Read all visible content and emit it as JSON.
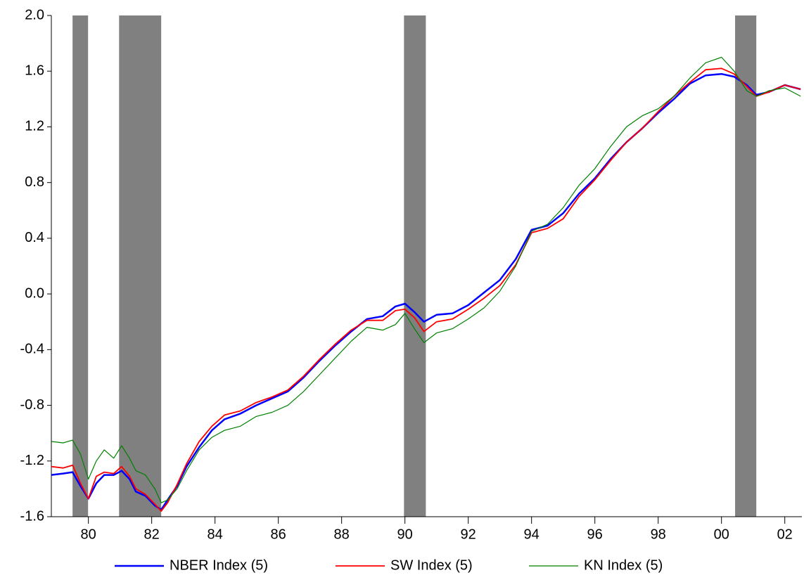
{
  "chart_data": {
    "type": "line",
    "x": [
      1979.33,
      1979.7,
      1980.0,
      1980.25,
      1980.5,
      1980.75,
      1981.0,
      1981.3,
      1981.55,
      1981.8,
      1982.0,
      1982.3,
      1982.6,
      1982.8,
      1983.0,
      1983.3,
      1983.6,
      1984.0,
      1984.4,
      1984.8,
      1985.3,
      1985.8,
      1986.3,
      1986.8,
      1987.3,
      1987.8,
      1988.3,
      1988.8,
      1989.3,
      1989.8,
      1990.2,
      1990.5,
      1990.8,
      1991.1,
      1991.5,
      1992.0,
      1992.5,
      1993.0,
      1993.5,
      1994.0,
      1994.5,
      1995.0,
      1995.5,
      1996.0,
      1996.5,
      1997.0,
      1997.5,
      1998.0,
      1998.5,
      1999.0,
      1999.5,
      2000.0,
      2000.5,
      2000.9,
      2001.3,
      2001.6,
      2002.0,
      2002.5,
      2003.0
    ],
    "series": [
      {
        "name": "NBER Index (5)",
        "color": "#0000ff",
        "width": 2.5,
        "values": [
          -1.3,
          -1.29,
          -1.28,
          -1.38,
          -1.47,
          -1.36,
          -1.3,
          -1.3,
          -1.27,
          -1.33,
          -1.42,
          -1.45,
          -1.52,
          -1.55,
          -1.48,
          -1.38,
          -1.24,
          -1.1,
          -0.98,
          -0.9,
          -0.86,
          -0.8,
          -0.75,
          -0.7,
          -0.6,
          -0.48,
          -0.37,
          -0.27,
          -0.18,
          -0.16,
          -0.09,
          -0.07,
          -0.13,
          -0.2,
          -0.15,
          -0.14,
          -0.08,
          0.01,
          0.1,
          0.25,
          0.46,
          0.49,
          0.58,
          0.72,
          0.83,
          0.97,
          1.09,
          1.19,
          1.3,
          1.4,
          1.51,
          1.57,
          1.58,
          1.56,
          1.5,
          1.43,
          1.45,
          1.5,
          1.47
        ]
      },
      {
        "name": "SW Index (5)",
        "color": "#ff0000",
        "width": 1.8,
        "values": [
          -1.24,
          -1.25,
          -1.23,
          -1.36,
          -1.47,
          -1.31,
          -1.28,
          -1.29,
          -1.24,
          -1.31,
          -1.4,
          -1.44,
          -1.51,
          -1.56,
          -1.5,
          -1.37,
          -1.22,
          -1.06,
          -0.95,
          -0.87,
          -0.84,
          -0.78,
          -0.74,
          -0.69,
          -0.59,
          -0.47,
          -0.36,
          -0.26,
          -0.19,
          -0.19,
          -0.12,
          -0.11,
          -0.17,
          -0.27,
          -0.2,
          -0.18,
          -0.11,
          -0.03,
          0.06,
          0.21,
          0.44,
          0.47,
          0.54,
          0.7,
          0.82,
          0.96,
          1.09,
          1.19,
          1.31,
          1.42,
          1.52,
          1.61,
          1.62,
          1.58,
          1.49,
          1.42,
          1.45,
          1.5,
          1.47
        ]
      },
      {
        "name": "KN Index (5)",
        "color": "#008000",
        "width": 1.2,
        "values": [
          -1.06,
          -1.07,
          -1.05,
          -1.15,
          -1.33,
          -1.2,
          -1.12,
          -1.18,
          -1.09,
          -1.18,
          -1.27,
          -1.3,
          -1.4,
          -1.5,
          -1.48,
          -1.4,
          -1.27,
          -1.12,
          -1.03,
          -0.98,
          -0.95,
          -0.88,
          -0.85,
          -0.8,
          -0.7,
          -0.58,
          -0.46,
          -0.34,
          -0.24,
          -0.26,
          -0.22,
          -0.14,
          -0.25,
          -0.35,
          -0.28,
          -0.25,
          -0.18,
          -0.1,
          0.02,
          0.2,
          0.45,
          0.5,
          0.62,
          0.78,
          0.9,
          1.06,
          1.2,
          1.28,
          1.33,
          1.42,
          1.55,
          1.66,
          1.7,
          1.6,
          1.46,
          1.42,
          1.46,
          1.48,
          1.42
        ]
      }
    ],
    "shading": [
      [
        1980.0,
        1980.49
      ],
      [
        1981.47,
        1982.8
      ],
      [
        1990.47,
        1991.16
      ],
      [
        2000.93,
        2001.6
      ]
    ],
    "shading_color": "#808080",
    "xlim": [
      1979.33,
      2003.04
    ],
    "xticks": [
      {
        "value": 1980.5,
        "label": "80"
      },
      {
        "value": 1982.5,
        "label": "82"
      },
      {
        "value": 1984.5,
        "label": "84"
      },
      {
        "value": 1986.5,
        "label": "86"
      },
      {
        "value": 1988.5,
        "label": "88"
      },
      {
        "value": 1990.5,
        "label": "90"
      },
      {
        "value": 1992.5,
        "label": "92"
      },
      {
        "value": 1994.5,
        "label": "94"
      },
      {
        "value": 1996.5,
        "label": "96"
      },
      {
        "value": 1998.5,
        "label": "98"
      },
      {
        "value": 2000.5,
        "label": "00"
      },
      {
        "value": 2002.5,
        "label": "02"
      }
    ],
    "ylim": [
      -1.6,
      2.0
    ],
    "yticks": [
      -1.6,
      -1.2,
      -0.8,
      -0.4,
      {
        "value": 0,
        "label": "0.0"
      },
      0.4,
      0.8,
      1.2,
      1.6,
      {
        "value": 2,
        "label": "2.0"
      }
    ],
    "grid": false,
    "legend": "bottom"
  }
}
